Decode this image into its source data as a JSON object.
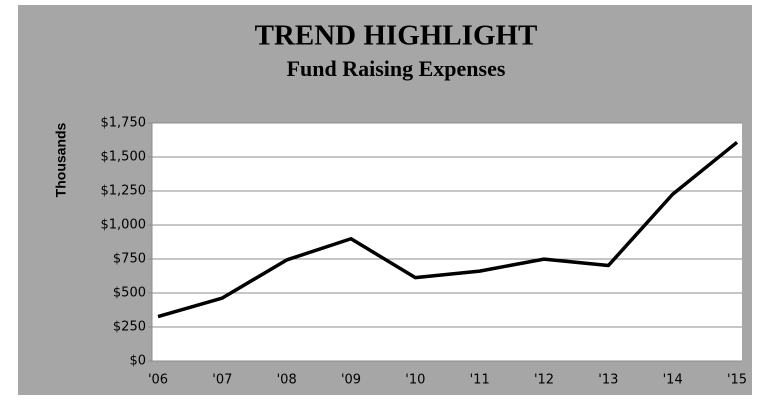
{
  "chart_data": {
    "type": "line",
    "title": "TREND HIGHLIGHT",
    "subtitle": "Fund Raising Expenses",
    "y_label": "Thousands",
    "categories": [
      "'06",
      "'07",
      "'08",
      "'09",
      "'10",
      "'11",
      "'12",
      "'13",
      "'14",
      "'15"
    ],
    "values": [
      327,
      463,
      743,
      899,
      613,
      661,
      749,
      702,
      1226,
      1608
    ],
    "color": "#000000",
    "ylim": [
      0,
      1750
    ],
    "yticks": [
      {
        "value": 0,
        "label": "$0"
      },
      {
        "value": 250,
        "label": "$250"
      },
      {
        "value": 500,
        "label": "$500"
      },
      {
        "value": 750,
        "label": "$750"
      },
      {
        "value": 1000,
        "label": "$1,000"
      },
      {
        "value": 1250,
        "label": "$1,250"
      },
      {
        "value": 1500,
        "label": "$1,500"
      },
      {
        "value": 1750,
        "label": "$1,750"
      }
    ],
    "grid": true
  }
}
